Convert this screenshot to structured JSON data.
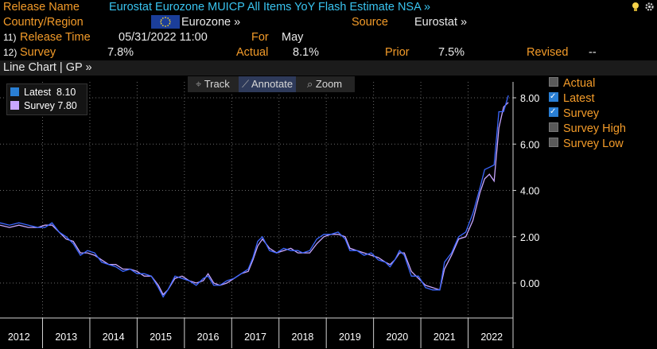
{
  "header": {
    "release_name_label": "Release Name",
    "release_name_value": "Eurostat Eurozone MUICP All Items YoY Flash Estimate NSA »",
    "country_label": "Country/Region",
    "country_value": "Eurozone »",
    "source_label": "Source",
    "source_value": "Eurostat »",
    "row11_num": "11)",
    "release_time_label": "Release Time",
    "release_time_value": "05/31/2022 11:00",
    "for_label": "For",
    "for_value": "May",
    "row12_num": "12)",
    "survey_label": "Survey",
    "survey_value": "7.8%",
    "actual_label": "Actual",
    "actual_value": "8.1%",
    "prior_label": "Prior",
    "prior_value": "7.5%",
    "revised_label": "Revised",
    "revised_value": "--"
  },
  "chart_header": {
    "title": "Line Chart | GP »"
  },
  "toolbar": {
    "track_label": "Track",
    "annotate_label": "Annotate",
    "zoom_label": "Zoom"
  },
  "legend_box": {
    "latest_label": "Latest",
    "latest_value": "8.10",
    "survey_label": "Survey",
    "survey_value": "7.80"
  },
  "series_toggles": [
    {
      "label": "Actual",
      "checked": false
    },
    {
      "label": "Latest",
      "checked": true
    },
    {
      "label": "Survey",
      "checked": true
    },
    {
      "label": "Survey High",
      "checked": false
    },
    {
      "label": "Survey Low",
      "checked": false
    }
  ],
  "colors": {
    "orange": "#f39b29",
    "cyan": "#39c4f0",
    "latest": "#3b66ff",
    "survey": "#c8a6ff",
    "flag": "#1b3e9a"
  },
  "chart_data": {
    "type": "line",
    "ylim": [
      -1.2,
      8.8
    ],
    "yticks": [
      "8.00",
      "6.00",
      "4.00",
      "2.00",
      "0.00"
    ],
    "ytick_values": [
      8,
      6,
      4,
      2,
      0
    ],
    "x_tick_labels": [
      "2012",
      "2013",
      "2014",
      "2015",
      "2016",
      "2017",
      "2018",
      "2019",
      "2020",
      "2021",
      "2022"
    ],
    "x_tick_years": [
      2012,
      2013,
      2014,
      2015,
      2016,
      2017,
      2018,
      2019,
      2020,
      2021,
      2022
    ],
    "xlim": [
      2011.6,
      2022.45
    ],
    "grid": true,
    "series": [
      {
        "name": "Latest",
        "color": "#3b66ff",
        "points": [
          [
            2011.6,
            2.6
          ],
          [
            2011.8,
            2.5
          ],
          [
            2012.0,
            2.6
          ],
          [
            2012.2,
            2.5
          ],
          [
            2012.4,
            2.4
          ],
          [
            2012.55,
            2.4
          ],
          [
            2012.7,
            2.6
          ],
          [
            2012.85,
            2.2
          ],
          [
            2013.0,
            2.0
          ],
          [
            2013.15,
            1.7
          ],
          [
            2013.3,
            1.2
          ],
          [
            2013.45,
            1.4
          ],
          [
            2013.6,
            1.3
          ],
          [
            2013.75,
            0.9
          ],
          [
            2013.9,
            0.8
          ],
          [
            2014.05,
            0.7
          ],
          [
            2014.2,
            0.5
          ],
          [
            2014.35,
            0.6
          ],
          [
            2014.5,
            0.4
          ],
          [
            2014.65,
            0.4
          ],
          [
            2014.8,
            0.3
          ],
          [
            2014.95,
            -0.2
          ],
          [
            2015.05,
            -0.6
          ],
          [
            2015.15,
            -0.3
          ],
          [
            2015.3,
            0.3
          ],
          [
            2015.45,
            0.2
          ],
          [
            2015.6,
            0.1
          ],
          [
            2015.75,
            -0.1
          ],
          [
            2015.9,
            0.2
          ],
          [
            2016.0,
            0.3
          ],
          [
            2016.12,
            -0.1
          ],
          [
            2016.25,
            -0.1
          ],
          [
            2016.4,
            0.1
          ],
          [
            2016.55,
            0.2
          ],
          [
            2016.7,
            0.4
          ],
          [
            2016.85,
            0.6
          ],
          [
            2016.95,
            1.1
          ],
          [
            2017.05,
            1.8
          ],
          [
            2017.15,
            2.0
          ],
          [
            2017.3,
            1.4
          ],
          [
            2017.45,
            1.3
          ],
          [
            2017.6,
            1.5
          ],
          [
            2017.75,
            1.4
          ],
          [
            2017.9,
            1.4
          ],
          [
            2018.0,
            1.3
          ],
          [
            2018.15,
            1.4
          ],
          [
            2018.3,
            1.9
          ],
          [
            2018.45,
            2.1
          ],
          [
            2018.6,
            2.1
          ],
          [
            2018.75,
            2.2
          ],
          [
            2018.9,
            1.9
          ],
          [
            2019.0,
            1.4
          ],
          [
            2019.15,
            1.4
          ],
          [
            2019.3,
            1.2
          ],
          [
            2019.45,
            1.3
          ],
          [
            2019.6,
            1.0
          ],
          [
            2019.75,
            0.9
          ],
          [
            2019.85,
            0.7
          ],
          [
            2019.95,
            1.0
          ],
          [
            2020.05,
            1.4
          ],
          [
            2020.15,
            1.2
          ],
          [
            2020.3,
            0.3
          ],
          [
            2020.45,
            0.3
          ],
          [
            2020.6,
            -0.2
          ],
          [
            2020.75,
            -0.3
          ],
          [
            2020.9,
            -0.3
          ],
          [
            2021.0,
            0.9
          ],
          [
            2021.15,
            1.3
          ],
          [
            2021.3,
            2.0
          ],
          [
            2021.45,
            2.2
          ],
          [
            2021.6,
            3.0
          ],
          [
            2021.75,
            4.1
          ],
          [
            2021.85,
            4.9
          ],
          [
            2021.95,
            5.0
          ],
          [
            2022.05,
            5.1
          ],
          [
            2022.15,
            7.4
          ],
          [
            2022.25,
            7.4
          ],
          [
            2022.35,
            8.1
          ]
        ]
      },
      {
        "name": "Survey",
        "color": "#c8a6ff",
        "points": [
          [
            2011.6,
            2.5
          ],
          [
            2011.8,
            2.4
          ],
          [
            2012.0,
            2.5
          ],
          [
            2012.2,
            2.4
          ],
          [
            2012.4,
            2.4
          ],
          [
            2012.55,
            2.5
          ],
          [
            2012.7,
            2.5
          ],
          [
            2012.85,
            2.2
          ],
          [
            2013.0,
            1.9
          ],
          [
            2013.15,
            1.8
          ],
          [
            2013.3,
            1.3
          ],
          [
            2013.45,
            1.3
          ],
          [
            2013.6,
            1.2
          ],
          [
            2013.75,
            1.0
          ],
          [
            2013.9,
            0.8
          ],
          [
            2014.05,
            0.8
          ],
          [
            2014.2,
            0.6
          ],
          [
            2014.35,
            0.6
          ],
          [
            2014.5,
            0.5
          ],
          [
            2014.65,
            0.3
          ],
          [
            2014.8,
            0.3
          ],
          [
            2014.95,
            -0.1
          ],
          [
            2015.05,
            -0.5
          ],
          [
            2015.15,
            -0.3
          ],
          [
            2015.3,
            0.2
          ],
          [
            2015.45,
            0.3
          ],
          [
            2015.6,
            0.1
          ],
          [
            2015.75,
            0.0
          ],
          [
            2015.9,
            0.1
          ],
          [
            2016.0,
            0.4
          ],
          [
            2016.12,
            0.0
          ],
          [
            2016.25,
            -0.1
          ],
          [
            2016.4,
            0.0
          ],
          [
            2016.55,
            0.2
          ],
          [
            2016.7,
            0.4
          ],
          [
            2016.85,
            0.5
          ],
          [
            2016.95,
            1.0
          ],
          [
            2017.05,
            1.6
          ],
          [
            2017.15,
            1.9
          ],
          [
            2017.3,
            1.5
          ],
          [
            2017.45,
            1.3
          ],
          [
            2017.6,
            1.4
          ],
          [
            2017.75,
            1.5
          ],
          [
            2017.9,
            1.3
          ],
          [
            2018.0,
            1.3
          ],
          [
            2018.15,
            1.3
          ],
          [
            2018.3,
            1.7
          ],
          [
            2018.45,
            2.0
          ],
          [
            2018.6,
            2.1
          ],
          [
            2018.75,
            2.1
          ],
          [
            2018.9,
            2.0
          ],
          [
            2019.0,
            1.5
          ],
          [
            2019.15,
            1.4
          ],
          [
            2019.3,
            1.3
          ],
          [
            2019.45,
            1.2
          ],
          [
            2019.6,
            1.1
          ],
          [
            2019.75,
            0.9
          ],
          [
            2019.85,
            0.8
          ],
          [
            2019.95,
            1.0
          ],
          [
            2020.05,
            1.3
          ],
          [
            2020.15,
            1.3
          ],
          [
            2020.3,
            0.5
          ],
          [
            2020.45,
            0.2
          ],
          [
            2020.6,
            -0.1
          ],
          [
            2020.75,
            -0.2
          ],
          [
            2020.9,
            -0.3
          ],
          [
            2021.0,
            0.6
          ],
          [
            2021.15,
            1.2
          ],
          [
            2021.3,
            1.9
          ],
          [
            2021.45,
            2.0
          ],
          [
            2021.6,
            2.7
          ],
          [
            2021.75,
            3.9
          ],
          [
            2021.85,
            4.5
          ],
          [
            2021.95,
            4.7
          ],
          [
            2022.05,
            4.4
          ],
          [
            2022.15,
            6.7
          ],
          [
            2022.25,
            7.6
          ],
          [
            2022.35,
            7.8
          ]
        ]
      }
    ]
  }
}
